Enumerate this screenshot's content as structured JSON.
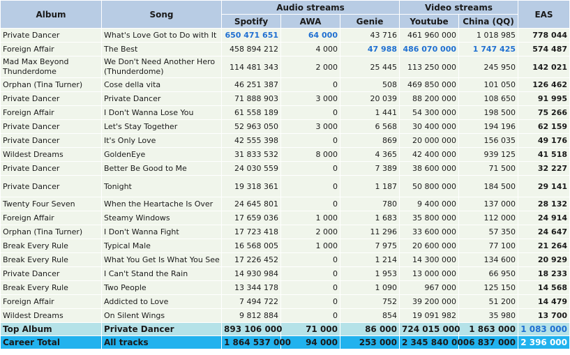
{
  "header": {
    "album": "Album",
    "song": "Song",
    "audio_group": "Audio streams",
    "video_group": "Video streams",
    "eas": "EAS",
    "spotify": "Spotify",
    "awa": "AWA",
    "genie": "Genie",
    "youtube": "Youtube",
    "china": "China (QQ)"
  },
  "rows": [
    {
      "album": "Private Dancer",
      "song": "What's Love Got to Do with It",
      "spotify": "650 471 651",
      "awa": "64 000",
      "genie": "43 716",
      "youtube": "461 960 000",
      "china": "1 018 985",
      "eas": "778 044"
    },
    {
      "album": "Foreign Affair",
      "song": "The Best",
      "spotify": "458 894 212",
      "awa": "4 000",
      "genie": "47 988",
      "youtube": "486 070 000",
      "china": "1 747 425",
      "eas": "574 487"
    },
    {
      "album": "Mad Max Beyond Thunderdome",
      "song": "We Don't Need Another Hero (Thunderdome)",
      "spotify": "114 481 343",
      "awa": "2 000",
      "genie": "25 445",
      "youtube": "113 250 000",
      "china": "245 950",
      "eas": "142 021"
    },
    {
      "album": "Orphan (Tina Turner)",
      "song": "Cose della vita",
      "spotify": "46 251 387",
      "awa": "0",
      "genie": "508",
      "youtube": "469 850 000",
      "china": "101 050",
      "eas": "126 462"
    },
    {
      "album": "Private Dancer",
      "song": "Private Dancer",
      "spotify": "71 888 903",
      "awa": "3 000",
      "genie": "20 039",
      "youtube": "88 200 000",
      "china": "108 650",
      "eas": "91 995"
    },
    {
      "album": "Foreign Affair",
      "song": "I Don't Wanna Lose You",
      "spotify": "61 558 189",
      "awa": "0",
      "genie": "1 441",
      "youtube": "54 300 000",
      "china": "198 500",
      "eas": "75 266"
    },
    {
      "album": "Private Dancer",
      "song": "Let's Stay Together",
      "spotify": "52 963 050",
      "awa": "3 000",
      "genie": "6 568",
      "youtube": "30 400 000",
      "china": "194 196",
      "eas": "62 159"
    },
    {
      "album": "Private Dancer",
      "song": "It's Only Love",
      "spotify": "42 555 398",
      "awa": "0",
      "genie": "869",
      "youtube": "20 000 000",
      "china": "156 035",
      "eas": "49 176"
    },
    {
      "album": "Wildest Dreams",
      "song": "GoldenEye",
      "spotify": "31 833 532",
      "awa": "8 000",
      "genie": "4 365",
      "youtube": "42 400 000",
      "china": "939 125",
      "eas": "41 518"
    },
    {
      "album": "Private Dancer",
      "song": "Better Be Good to Me",
      "spotify": "24 030 559",
      "awa": "0",
      "genie": "7 389",
      "youtube": "38 600 000",
      "china": "71 500",
      "eas": "32 227"
    },
    {
      "album": "Private Dancer",
      "song": "Tonight",
      "spotify": "19 318 361",
      "awa": "0",
      "genie": "1 187",
      "youtube": "50 800 000",
      "china": "184 500",
      "eas": "29 141"
    },
    {
      "album": "Twenty Four Seven",
      "song": "When the Heartache Is Over",
      "spotify": "24 645 801",
      "awa": "0",
      "genie": "780",
      "youtube": "9 400 000",
      "china": "137 000",
      "eas": "28 132"
    },
    {
      "album": "Foreign Affair",
      "song": "Steamy Windows",
      "spotify": "17 659 036",
      "awa": "1 000",
      "genie": "1 683",
      "youtube": "35 800 000",
      "china": "112 000",
      "eas": "24 914"
    },
    {
      "album": "Orphan (Tina Turner)",
      "song": "I Don't Wanna Fight",
      "spotify": "17 723 418",
      "awa": "2 000",
      "genie": "11 296",
      "youtube": "33 600 000",
      "china": "57 350",
      "eas": "24 647"
    },
    {
      "album": "Break Every Rule",
      "song": "Typical Male",
      "spotify": "16 568 005",
      "awa": "1 000",
      "genie": "7 975",
      "youtube": "20 600 000",
      "china": "77 100",
      "eas": "21 264"
    },
    {
      "album": "Break Every Rule",
      "song": "What You Get Is What You See",
      "spotify": "17 226 452",
      "awa": "0",
      "genie": "1 214",
      "youtube": "14 300 000",
      "china": "134 600",
      "eas": "20 929"
    },
    {
      "album": "Private Dancer",
      "song": "I Can't Stand the Rain",
      "spotify": "14 930 984",
      "awa": "0",
      "genie": "1 953",
      "youtube": "13 000 000",
      "china": "66 950",
      "eas": "18 233"
    },
    {
      "album": "Break Every Rule",
      "song": "Two People",
      "spotify": "13 344 178",
      "awa": "0",
      "genie": "1 090",
      "youtube": "967 000",
      "china": "125 150",
      "eas": "14 568"
    },
    {
      "album": "Foreign Affair",
      "song": "Addicted to Love",
      "spotify": "7 494 722",
      "awa": "0",
      "genie": "752",
      "youtube": "39 200 000",
      "china": "51 200",
      "eas": "14 479"
    },
    {
      "album": "Wildest Dreams",
      "song": "On Silent Wings",
      "spotify": "9 812 884",
      "awa": "0",
      "genie": "854",
      "youtube": "19 091 982",
      "china": "35 980",
      "eas": "13 700"
    }
  ],
  "top_album": {
    "album": "Top Album",
    "song": "Private Dancer",
    "spotify": "893 106 000",
    "awa": "71 000",
    "genie": "86 000",
    "youtube": "724 015 000",
    "china": "1 863 000",
    "eas": "1 083 000"
  },
  "career_total": {
    "album": "Career Total",
    "song": "All tracks",
    "spotify": "1 864 537 000",
    "awa": "94 000",
    "genie": "253 000",
    "youtube": "2 345 840 000",
    "china": "6 837 000",
    "eas": "2 396 000"
  },
  "colors": {
    "header_bg": "#b8cce4",
    "row_bg": "#f0f5eb",
    "top_album_bg": "#b5e2e8",
    "career_bg": "#21b2ee",
    "highlight_text": "#1f6fd1"
  }
}
